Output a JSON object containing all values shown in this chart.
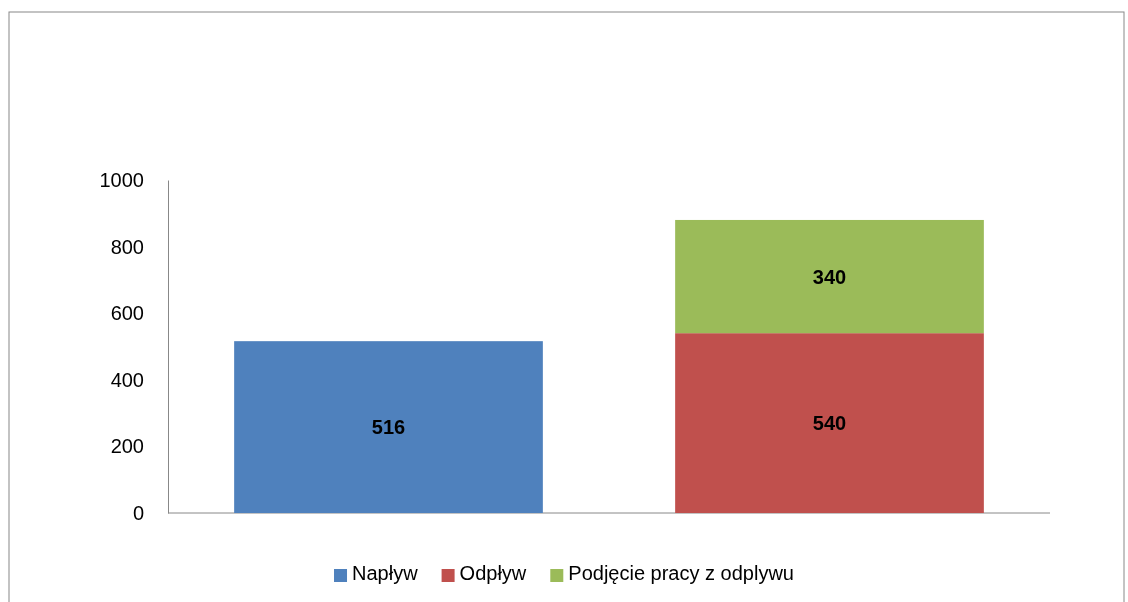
{
  "chart_data": {
    "type": "bar",
    "stacked": true,
    "categories": [
      null,
      null
    ],
    "series": [
      {
        "name": "Napływ",
        "color": "#4f81bd",
        "values": [
          516,
          null
        ]
      },
      {
        "name": "Odpływ",
        "color": "#c0504d",
        "values": [
          null,
          540
        ]
      },
      {
        "name": "Podjęcie pracy z odplywu",
        "color": "#9bbb59",
        "values": [
          null,
          340
        ]
      }
    ],
    "ylim": [
      0,
      1000
    ],
    "yticks": [
      0,
      200,
      400,
      600,
      800,
      1000
    ],
    "data_labels": true,
    "legend": "bottom"
  }
}
